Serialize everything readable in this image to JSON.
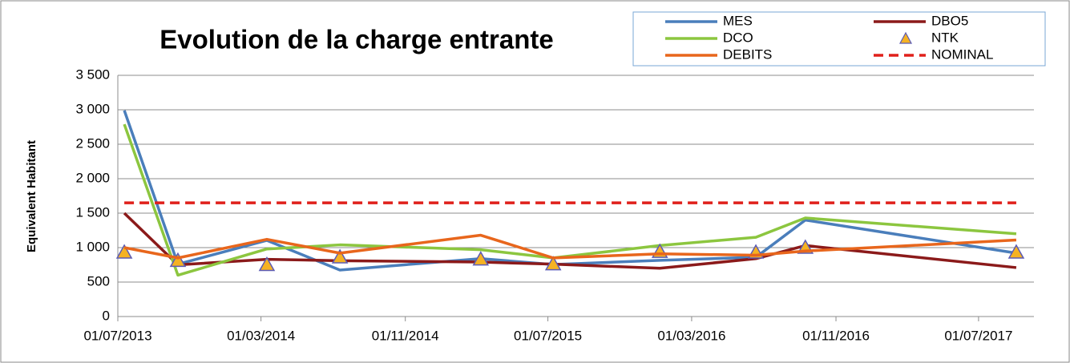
{
  "chart_data": {
    "type": "line",
    "title": "Evolution de la charge entrante",
    "y_label": "Equivalent Habitant",
    "x": [
      "12/07/2013",
      "11/10/2013",
      "11/03/2014",
      "13/07/2014",
      "09/03/2015",
      "10/07/2015",
      "07/01/2016",
      "18/06/2016",
      "10/09/2016",
      "03/09/2017"
    ],
    "series": [
      {
        "name": "MES",
        "color": "#4a7ebb",
        "values": [
          2990,
          760,
          1105,
          675,
          840,
          755,
          815,
          860,
          1400,
          920
        ]
      },
      {
        "name": "DBO5",
        "color": "#8b1a1a",
        "values": [
          1500,
          750,
          830,
          810,
          790,
          760,
          700,
          840,
          1030,
          710
        ]
      },
      {
        "name": "DCO",
        "color": "#8cc63f",
        "values": [
          2790,
          600,
          980,
          1040,
          970,
          850,
          1030,
          1150,
          1430,
          1200
        ]
      },
      {
        "name": "NTK",
        "color": "#f5b223",
        "marker": "triangle",
        "values": [
          930,
          810,
          750,
          860,
          830,
          760,
          940,
          930,
          1000,
          930
        ]
      },
      {
        "name": "DEBITS",
        "color": "#e8661c",
        "values": [
          1000,
          850,
          1120,
          920,
          1180,
          850,
          910,
          890,
          950,
          1110
        ]
      },
      {
        "name": "NOMINAL",
        "color": "#e0201b",
        "dashed": true,
        "values": [
          1650,
          1650,
          1650,
          1650,
          1650,
          1650,
          1650,
          1650,
          1650,
          1650
        ]
      }
    ],
    "xlim": [
      "01/07/2013",
      "03/10/2017"
    ],
    "xticks": [
      "01/07/2013",
      "01/03/2014",
      "01/11/2014",
      "01/07/2015",
      "01/03/2016",
      "01/11/2016",
      "01/07/2017"
    ],
    "ylim": [
      0,
      3500
    ],
    "yticks": [
      0,
      500,
      {
        "value": 1000,
        "label": "1 000"
      },
      {
        "value": 1500,
        "label": "1 500"
      },
      {
        "value": 2000,
        "label": "2 000"
      },
      {
        "value": 2500,
        "label": "2 500"
      },
      {
        "value": 3000,
        "label": "3 000"
      },
      {
        "value": 3500,
        "label": "3 500"
      }
    ],
    "grid": true
  }
}
